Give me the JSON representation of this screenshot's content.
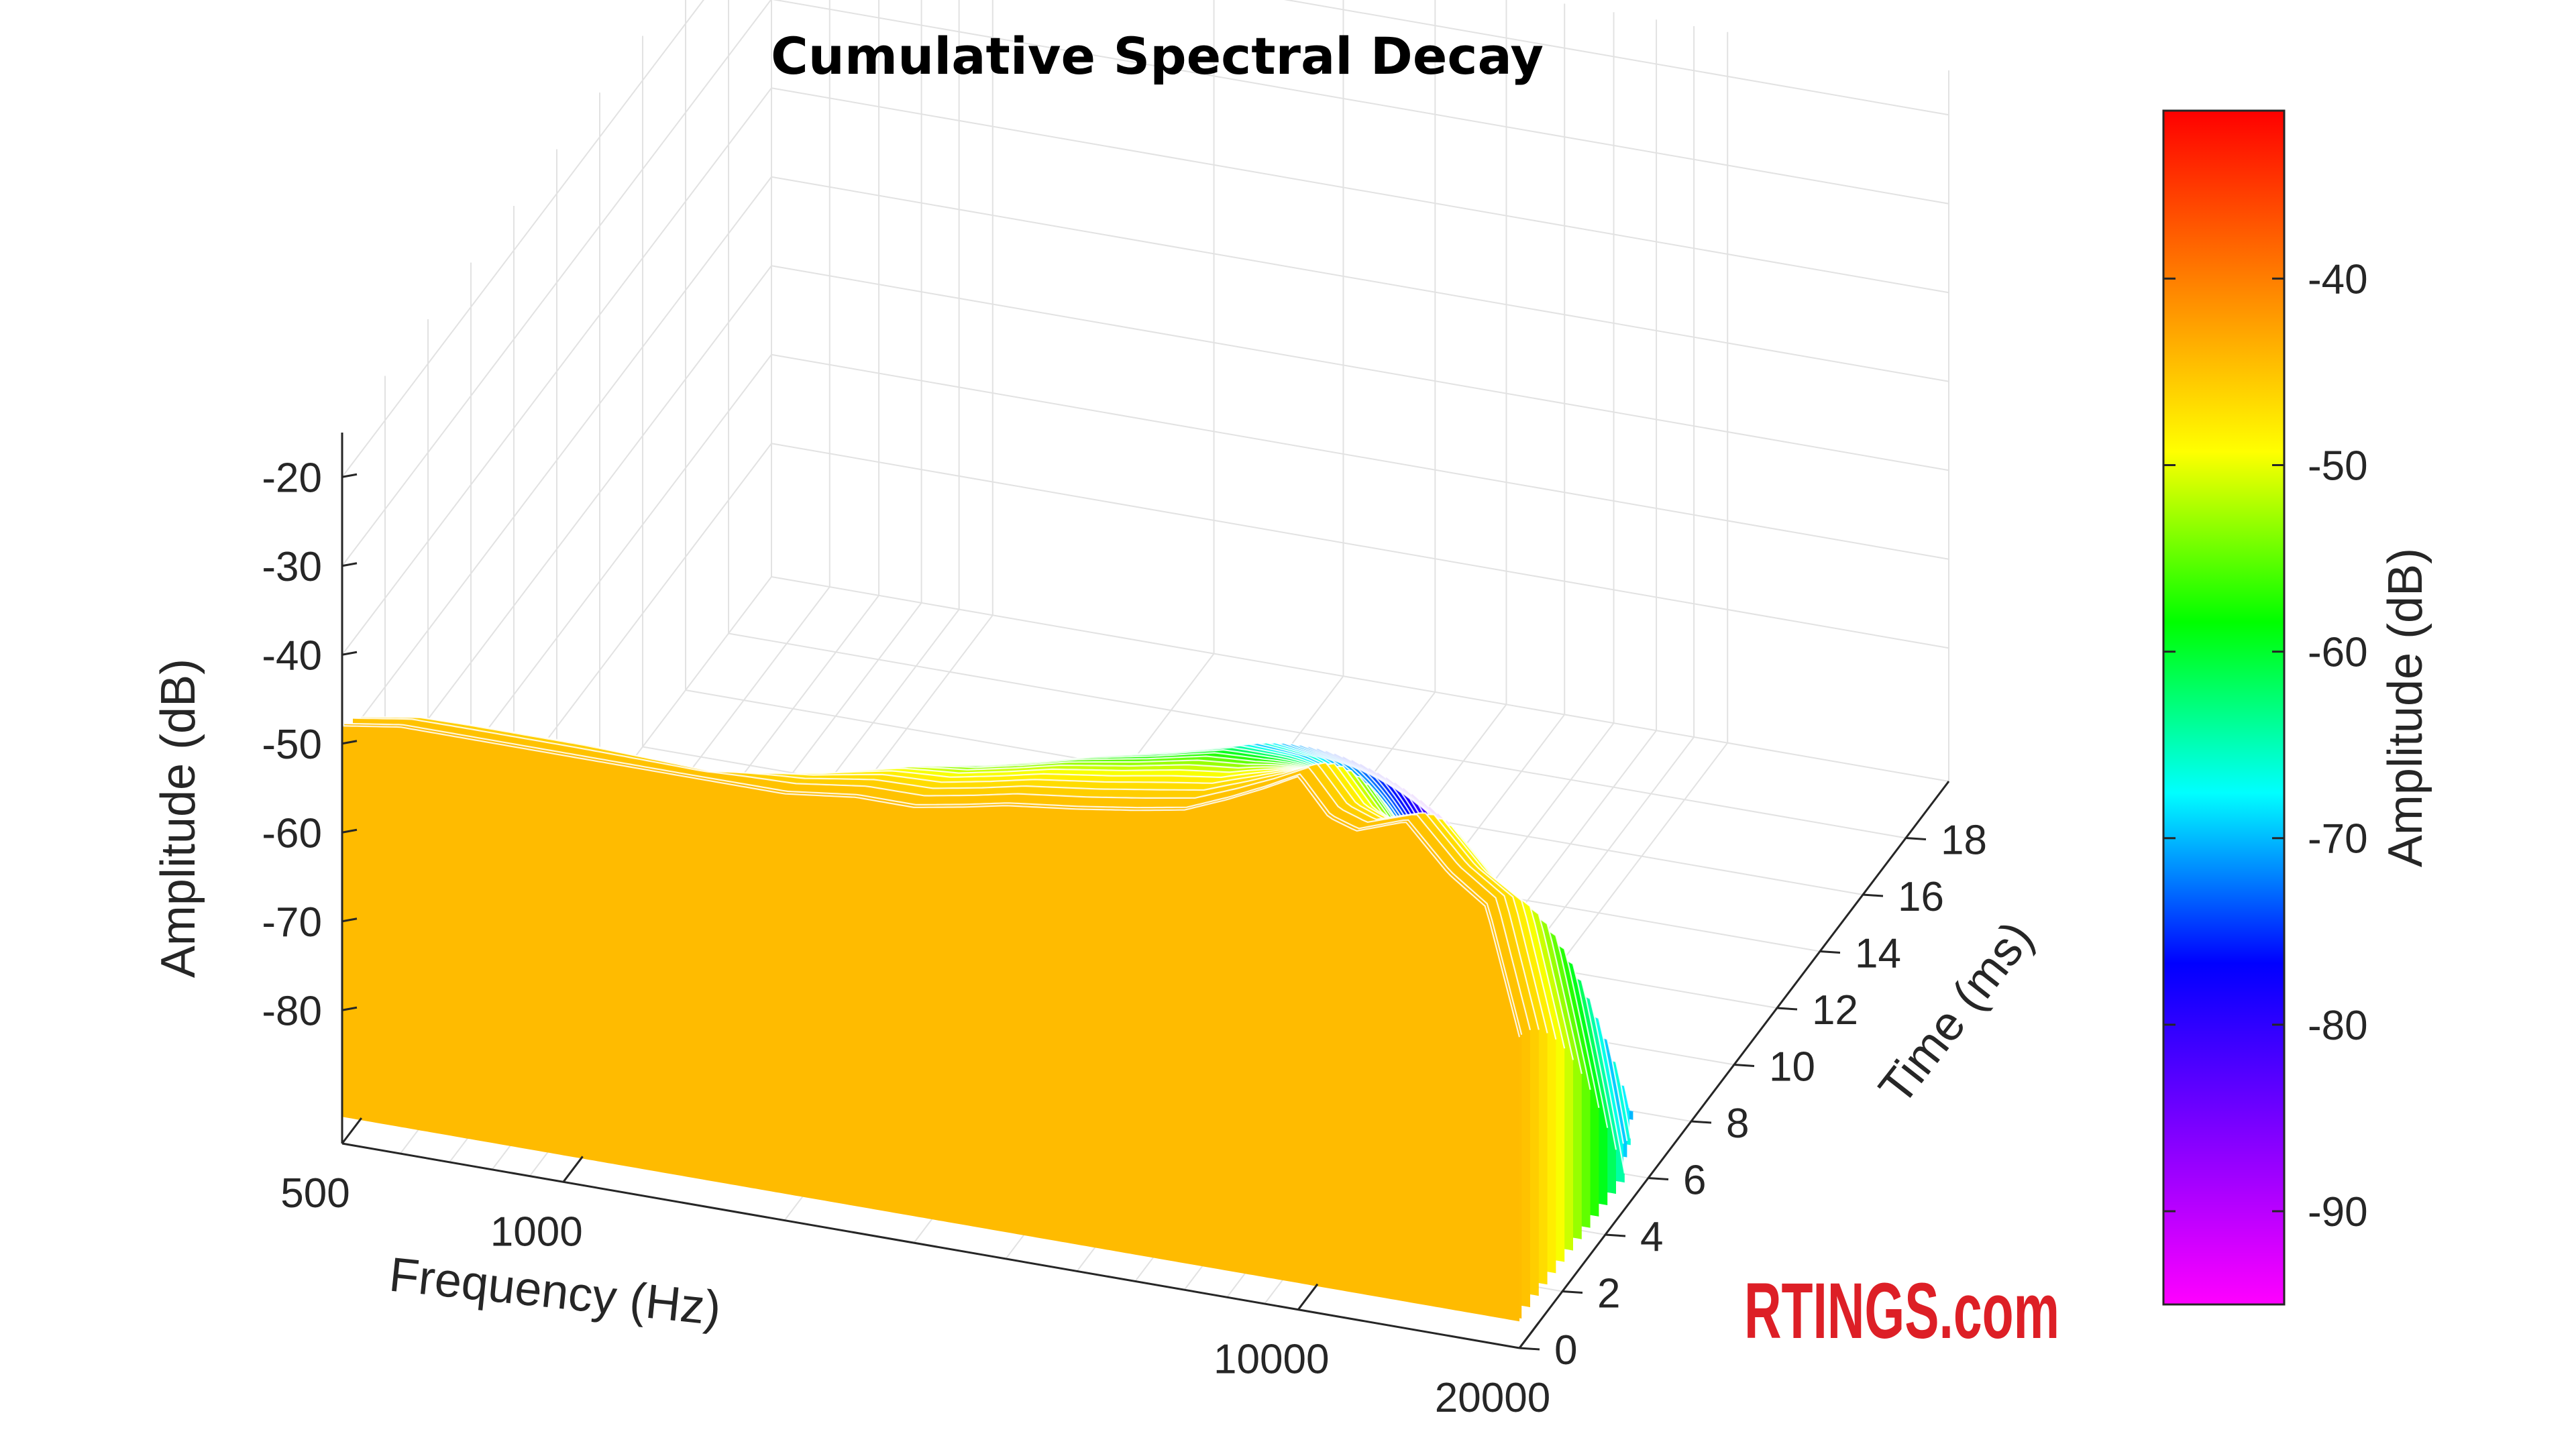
{
  "chart_data": {
    "type": "surface",
    "title": "Cumulative Spectral Decay",
    "x_axis": {
      "label": "Frequency (Hz)",
      "scale": "log",
      "range": [
        500,
        20000
      ],
      "ticks": [
        500,
        1000,
        10000,
        20000
      ],
      "tick_labels": [
        "500",
        "1000",
        "10000",
        "20000"
      ]
    },
    "y_axis": {
      "label": "Time (ms)",
      "range": [
        0,
        20
      ],
      "ticks": [
        0,
        2,
        4,
        6,
        8,
        10,
        12,
        14,
        16,
        18
      ],
      "tick_labels": [
        "0",
        "2",
        "4",
        "6",
        "8",
        "10",
        "12",
        "14",
        "16",
        "18"
      ]
    },
    "z_axis": {
      "label": "Amplitude (dB)",
      "range": [
        -95,
        -15
      ],
      "ticks": [
        -20,
        -30,
        -40,
        -50,
        -60,
        -70,
        -80
      ],
      "tick_labels": [
        "-20",
        "-30",
        "-40",
        "-50",
        "-60",
        "-70",
        "-80"
      ]
    },
    "colorbar": {
      "label": "Amplitude (dB)",
      "range": [
        -95,
        -31
      ],
      "ticks": [
        -40,
        -50,
        -60,
        -70,
        -80,
        -90
      ],
      "tick_labels": [
        "-40",
        "-50",
        "-60",
        "-70",
        "-80",
        "-90"
      ],
      "colormap": [
        "#ff00ff",
        "#8000ff",
        "#0000ff",
        "#00ffff",
        "#00ff00",
        "#ffff00",
        "#ff8000",
        "#ff0000"
      ]
    },
    "grid": true,
    "initial_response": {
      "frequency_hz": [
        500,
        600,
        700,
        800,
        1000,
        1200,
        1500,
        2000,
        2500,
        3000,
        3500,
        4000,
        5000,
        6000,
        7000,
        8000,
        9000,
        10000,
        11000,
        12000,
        14000,
        16000,
        18000,
        20000
      ],
      "amplitude_db": [
        -48,
        -47,
        -47,
        -47,
        -47,
        -47,
        -47,
        -47,
        -46,
        -46,
        -45,
        -44,
        -43,
        -42,
        -41,
        -39,
        -37,
        -35,
        -39,
        -40,
        -38,
        -43,
        -46,
        -60
      ]
    },
    "decay_time_ms": {
      "frequency_hz": [
        500,
        700,
        1000,
        1500,
        2000,
        3000,
        4000,
        5000,
        6000,
        7000,
        8000,
        9000,
        10000,
        12000,
        14000,
        16000,
        18000,
        20000
      ],
      "time_ms": [
        6.5,
        7,
        7,
        6,
        9,
        12,
        13,
        14,
        15,
        14,
        12,
        10,
        9,
        8,
        7.5,
        7,
        7,
        5
      ]
    },
    "floor_db": -92
  },
  "branding": {
    "logo_text": "RTINGS.com",
    "logo_color": "#dd1f26"
  }
}
